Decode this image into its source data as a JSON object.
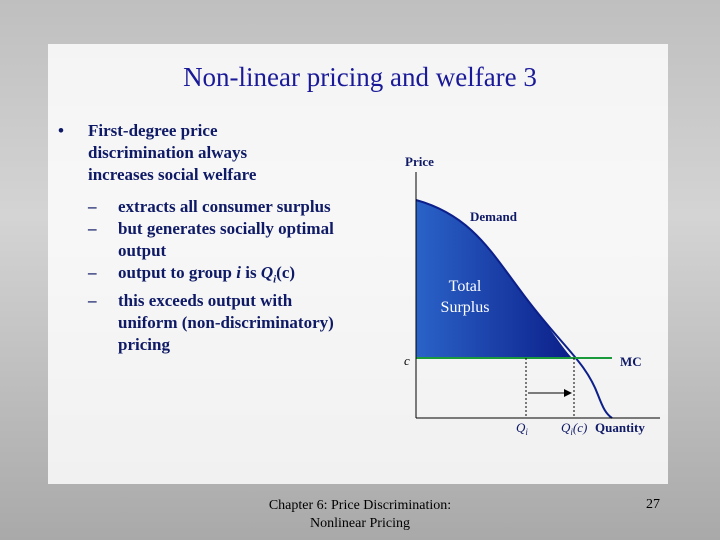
{
  "title": "Non-linear pricing and welfare 3",
  "bullets": [
    {
      "text": "First-degree price discrimination always increases social welfare",
      "sub_bullets": [
        [
          {
            "t": "extracts all consumer surplus"
          }
        ],
        [
          {
            "t": "but generates socially optimal output"
          }
        ],
        [
          {
            "t": "output to group "
          },
          {
            "t": "i",
            "s": "i"
          },
          {
            "t": " is "
          },
          {
            "t": "Q",
            "s": "i"
          },
          {
            "t": "i",
            "s": "sub"
          },
          {
            "t": "(c)"
          }
        ],
        [
          {
            "t": "this exceeds output with uniform (non-discriminatory) pricing"
          }
        ]
      ]
    }
  ],
  "diagram": {
    "y_axis": "Price",
    "demand": "Demand",
    "surplus": [
      "Total",
      "Surplus"
    ],
    "c": "c",
    "mc": "MC",
    "q_i": [
      {
        "t": "Q",
        "s": "i"
      },
      {
        "t": "i",
        "s": "sub"
      }
    ],
    "q_i_c": [
      {
        "t": "Q",
        "s": "i"
      },
      {
        "t": "i",
        "s": "sub"
      },
      {
        "t": "(c)",
        "s": "i"
      }
    ],
    "x_axis": "Quantity"
  },
  "footer": {
    "chapter": [
      "Chapter 6: Price Discrimination:",
      "Nonlinear Pricing"
    ],
    "page": "27"
  }
}
